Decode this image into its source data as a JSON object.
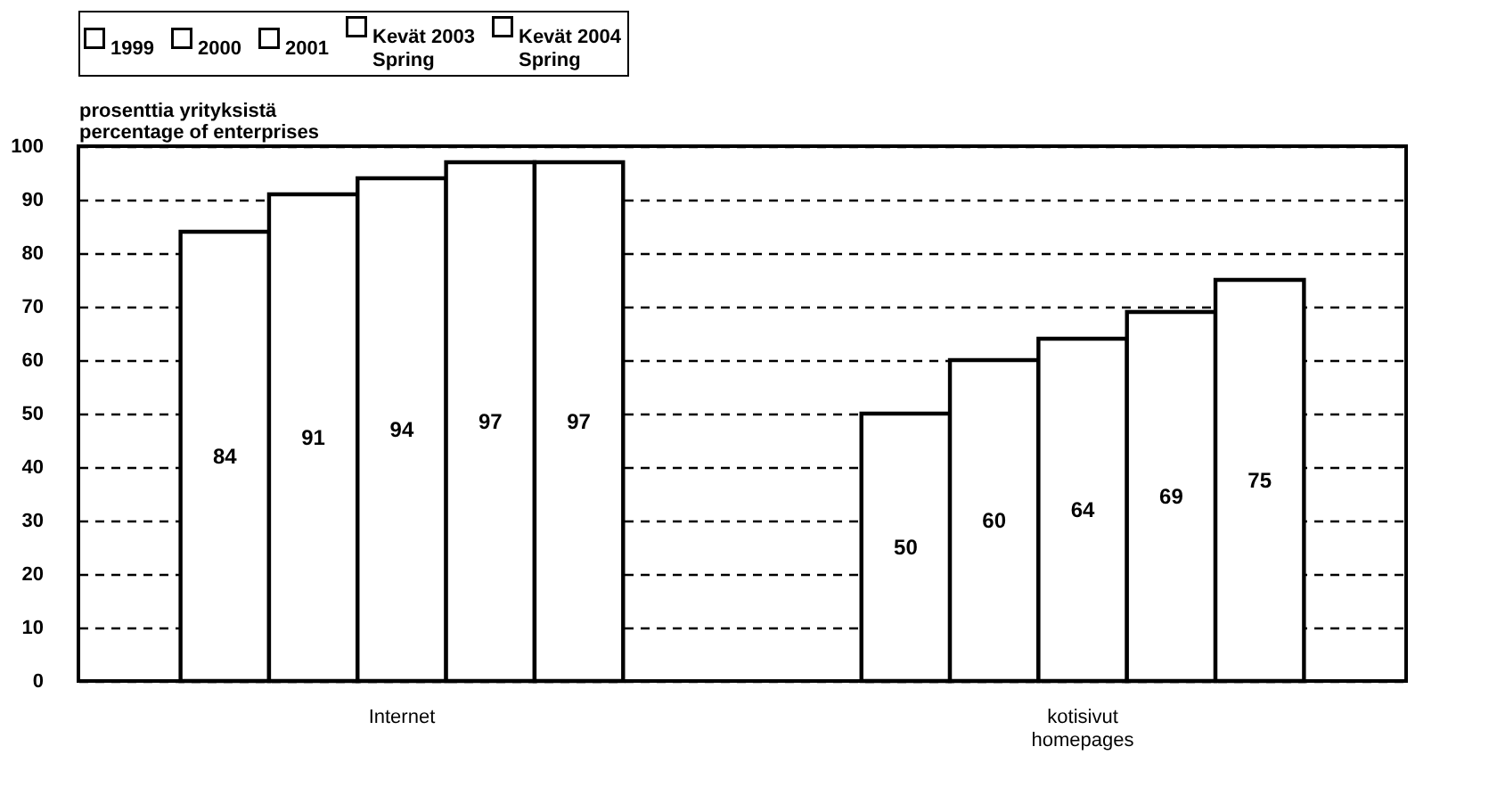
{
  "chart_data": {
    "type": "bar",
    "ylabel": "prosenttia yrityksistä\npercentage of enterprises",
    "categories": [
      "Internet",
      "kotisivut\nhomepages"
    ],
    "series": [
      {
        "name": "1999",
        "color": "#ffffff",
        "values": [
          84,
          50
        ]
      },
      {
        "name": "2000",
        "color": "#ffffff",
        "values": [
          91,
          60
        ]
      },
      {
        "name": "2001",
        "color": "#ffffff",
        "values": [
          94,
          64
        ]
      },
      {
        "name": "Kevät 2003\nSpring",
        "color": "#ffffff",
        "values": [
          97,
          69
        ]
      },
      {
        "name": "Kevät 2004\nSpring",
        "color": "#ffffff",
        "values": [
          97,
          75
        ]
      }
    ],
    "ylim": [
      0,
      100
    ],
    "yticks": [
      0,
      10,
      20,
      30,
      40,
      50,
      60,
      70,
      80,
      90,
      100
    ],
    "grid": "y",
    "legend": "top",
    "data_labels": true
  }
}
